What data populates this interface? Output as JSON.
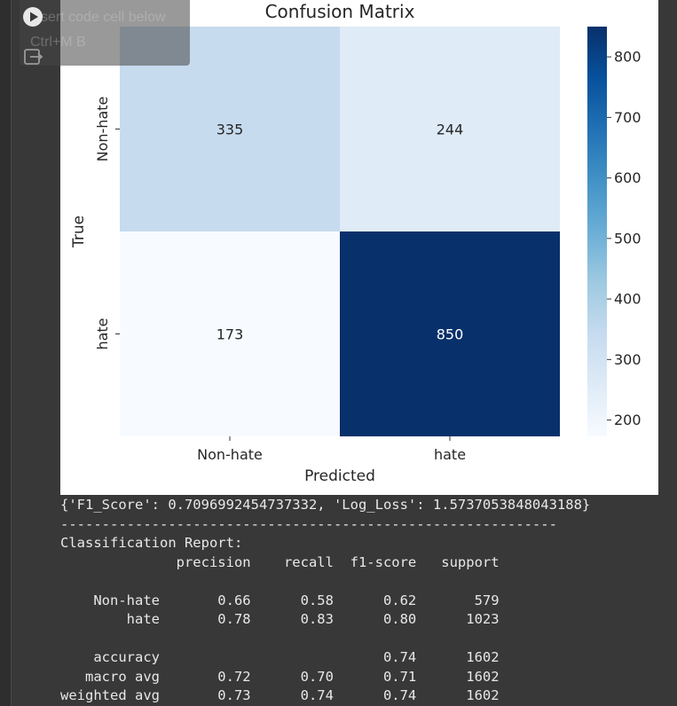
{
  "toolbar": {
    "insert_tooltip": "sert code cell below",
    "shortcut_tooltip": "Ctrl+M B",
    "run_icon": "play-circle-icon",
    "output_icon": "output-redirect-icon"
  },
  "chart_data": {
    "type": "heatmap",
    "title": "Confusion Matrix",
    "xlabel": "Predicted",
    "ylabel": "True",
    "x_categories": [
      "Non-hate",
      "hate"
    ],
    "y_categories": [
      "Non-hate",
      "hate"
    ],
    "values": [
      [
        335,
        244
      ],
      [
        173,
        850
      ]
    ],
    "colormap": "Blues",
    "colorbar_ticks": [
      200,
      300,
      400,
      500,
      600,
      700,
      800
    ],
    "colorbar_range": [
      173,
      850
    ],
    "cell_colors": [
      [
        "#c7dbef",
        "#dfebf7"
      ],
      [
        "#f7fbff",
        "#08306b"
      ]
    ],
    "annotation_colors": [
      [
        "#262626",
        "#262626"
      ],
      [
        "#262626",
        "#ffffff"
      ]
    ]
  },
  "output": {
    "metrics_line": "{'F1_Score': 0.7096992454737332, 'Log_Loss': 1.5737053848043188}",
    "separator": "------------------------------------------------------------",
    "report_title": "Classification Report:",
    "header": "              precision    recall  f1-score   support",
    "row_nonhate": "    Non-hate       0.66      0.58      0.62       579",
    "row_hate": "        hate       0.78      0.83      0.80      1023",
    "row_accuracy": "    accuracy                           0.74      1602",
    "row_macro": "   macro avg       0.72      0.70      0.71      1602",
    "row_weighted": "weighted avg       0.73      0.74      0.74      1602"
  }
}
